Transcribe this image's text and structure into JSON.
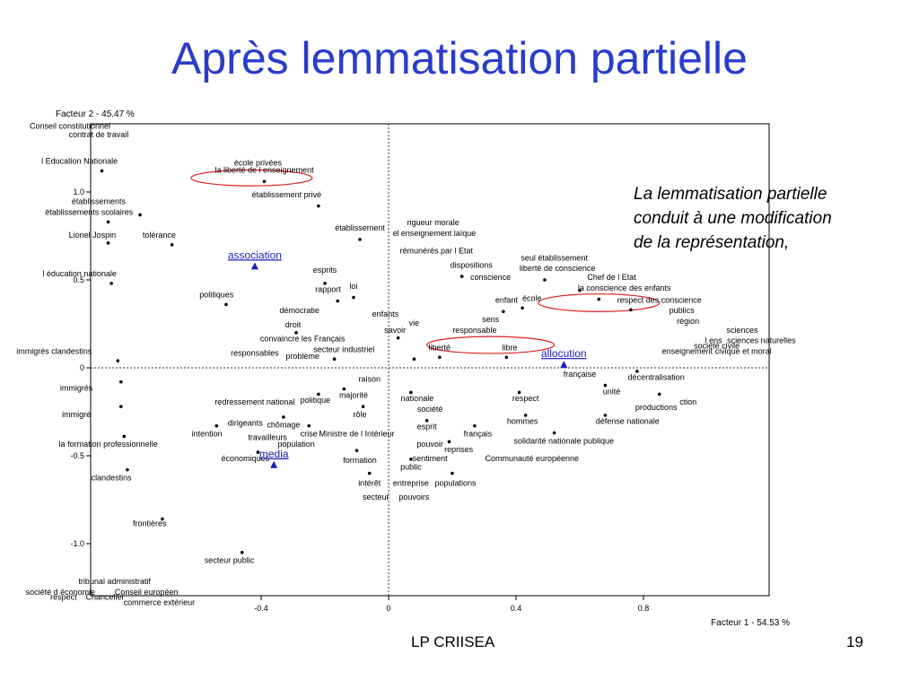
{
  "slide": {
    "title": "Après lemmatisation partielle",
    "commentary": [
      "La lemmatisation partielle",
      " conduit à une modification",
      " de la représentation,"
    ],
    "footer_source": "LP CRIISEA",
    "page_number": "19"
  },
  "chart_data": {
    "type": "scatter",
    "x_axis_label": "Facteur 1  -  54.53 %",
    "y_axis_label": "Facteur 2  -  45.47 %",
    "xlim": [
      -1.0,
      1.0
    ],
    "ylim": [
      -1.29,
      1.38
    ],
    "x_ticks": [
      {
        "value": -0.4,
        "label": "-0.4"
      },
      {
        "value": 0,
        "label": "0"
      },
      {
        "value": 0.4,
        "label": "0.4"
      },
      {
        "value": 0.8,
        "label": "0.8"
      }
    ],
    "y_ticks": [
      {
        "value": 1.0,
        "label": "1.0"
      },
      {
        "value": 0.5,
        "label": "0.5"
      },
      {
        "value": 0,
        "label": "0"
      },
      {
        "value": -0.5,
        "label": "-0.5"
      },
      {
        "value": -1.0,
        "label": "-1.0"
      }
    ],
    "colors": {
      "words": "#000000",
      "variables": "#1a1fb8",
      "highlight": "#dd2222",
      "axis": "#000000"
    },
    "variables": [
      {
        "label": "association",
        "x": -0.42,
        "y": 0.58
      },
      {
        "label": "media",
        "x": -0.36,
        "y": -0.55
      },
      {
        "label": "allocution",
        "x": 0.55,
        "y": 0.02
      }
    ],
    "words": [
      {
        "label": "Conseil constitutionnel",
        "x": -1.0,
        "y": 1.36
      },
      {
        "label": "contrat de travail",
        "x": -0.91,
        "y": 1.31
      },
      {
        "label": "l Education Nationale",
        "x": -0.97,
        "y": 1.16
      },
      {
        "label": "école privées",
        "x": -0.41,
        "y": 1.15
      },
      {
        "label": "la liberté de l enseignement",
        "x": -0.39,
        "y": 1.11
      },
      {
        "label": "établissement privé",
        "x": -0.32,
        "y": 0.97
      },
      {
        "label": "établissements",
        "x": -0.91,
        "y": 0.93
      },
      {
        "label": "établissements scolaires",
        "x": -0.94,
        "y": 0.87
      },
      {
        "label": "rigueur morale",
        "x": 0.14,
        "y": 0.81
      },
      {
        "label": "établissement",
        "x": -0.09,
        "y": 0.78
      },
      {
        "label": "e",
        "x": 0.02,
        "y": 0.75
      },
      {
        "label": "l enseignement laïque",
        "x": 0.15,
        "y": 0.75
      },
      {
        "label": "Lionel Jospin",
        "x": -0.93,
        "y": 0.74
      },
      {
        "label": "tolérance",
        "x": -0.72,
        "y": 0.74
      },
      {
        "label": "rémunérés par l Etat",
        "x": 0.15,
        "y": 0.65
      },
      {
        "label": "seul établissement",
        "x": 0.52,
        "y": 0.61
      },
      {
        "label": "dispositions",
        "x": 0.26,
        "y": 0.57
      },
      {
        "label": "liberté de conscience",
        "x": 0.53,
        "y": 0.55
      },
      {
        "label": "esprits",
        "x": -0.2,
        "y": 0.54
      },
      {
        "label": "conscience",
        "x": 0.32,
        "y": 0.5
      },
      {
        "label": "Chef de l Etat",
        "x": 0.7,
        "y": 0.5
      },
      {
        "label": "l éducation nationale",
        "x": -0.97,
        "y": 0.52
      },
      {
        "label": "loi",
        "x": -0.11,
        "y": 0.45
      },
      {
        "label": "rapport",
        "x": -0.19,
        "y": 0.43
      },
      {
        "label": "la conscience des enfants",
        "x": 0.74,
        "y": 0.44
      },
      {
        "label": "politiques",
        "x": -0.54,
        "y": 0.4
      },
      {
        "label": "enfant",
        "x": 0.37,
        "y": 0.37
      },
      {
        "label": "école",
        "x": 0.45,
        "y": 0.38
      },
      {
        "label": "respect des conscience",
        "x": 0.85,
        "y": 0.37
      },
      {
        "label": "démocratie",
        "x": -0.28,
        "y": 0.31
      },
      {
        "label": "publics",
        "x": 0.92,
        "y": 0.31
      },
      {
        "label": "enfants",
        "x": -0.01,
        "y": 0.29
      },
      {
        "label": "sens",
        "x": 0.32,
        "y": 0.26
      },
      {
        "label": "région",
        "x": 0.94,
        "y": 0.25
      },
      {
        "label": "droit",
        "x": -0.3,
        "y": 0.23
      },
      {
        "label": "vie",
        "x": 0.08,
        "y": 0.24
      },
      {
        "label": "savoir",
        "x": 0.02,
        "y": 0.2
      },
      {
        "label": "responsable",
        "x": 0.27,
        "y": 0.2
      },
      {
        "label": "sciences",
        "x": 1.11,
        "y": 0.2
      },
      {
        "label": "convaincre les Français",
        "x": -0.27,
        "y": 0.15
      },
      {
        "label": "l ens",
        "x": 1.02,
        "y": 0.14
      },
      {
        "label": "sciences naturelles",
        "x": 1.17,
        "y": 0.14
      },
      {
        "label": "secteur industriel",
        "x": -0.14,
        "y": 0.09
      },
      {
        "label": "liberté",
        "x": 0.16,
        "y": 0.1
      },
      {
        "label": "libre",
        "x": 0.38,
        "y": 0.1
      },
      {
        "label": "enseignement civique et moral",
        "x": 1.03,
        "y": 0.08
      },
      {
        "label": "immigrés clandestins",
        "x": -1.05,
        "y": 0.08
      },
      {
        "label": "responsables",
        "x": -0.42,
        "y": 0.07
      },
      {
        "label": "problème",
        "x": -0.27,
        "y": 0.05
      },
      {
        "label": "française",
        "x": 0.6,
        "y": -0.05
      },
      {
        "label": "raison",
        "x": -0.06,
        "y": -0.08
      },
      {
        "label": "décentralisation",
        "x": 0.84,
        "y": -0.07
      },
      {
        "label": "immigrés",
        "x": -0.98,
        "y": -0.13
      },
      {
        "label": "majorité",
        "x": -0.11,
        "y": -0.17
      },
      {
        "label": "unité",
        "x": 0.7,
        "y": -0.15
      },
      {
        "label": "nationale",
        "x": 0.09,
        "y": -0.19
      },
      {
        "label": "politique",
        "x": -0.23,
        "y": -0.2
      },
      {
        "label": "respect",
        "x": 0.43,
        "y": -0.19
      },
      {
        "label": "ction",
        "x": 0.94,
        "y": -0.21
      },
      {
        "label": "redressement national",
        "x": -0.42,
        "y": -0.21
      },
      {
        "label": "productions",
        "x": 0.84,
        "y": -0.24
      },
      {
        "label": "société",
        "x": 0.13,
        "y": -0.25
      },
      {
        "label": "immigré",
        "x": -0.98,
        "y": -0.28
      },
      {
        "label": "rôle",
        "x": -0.09,
        "y": -0.28
      },
      {
        "label": "défense nationale",
        "x": 0.75,
        "y": -0.32
      },
      {
        "label": "dirigeants",
        "x": -0.45,
        "y": -0.33
      },
      {
        "label": "chômage",
        "x": -0.33,
        "y": -0.34
      },
      {
        "label": "hommes",
        "x": 0.42,
        "y": -0.32
      },
      {
        "label": "esprit",
        "x": 0.12,
        "y": -0.35
      },
      {
        "label": "crise",
        "x": -0.25,
        "y": -0.39
      },
      {
        "label": "Ministre de l Intérieur",
        "x": -0.1,
        "y": -0.39
      },
      {
        "label": "français",
        "x": 0.28,
        "y": -0.39
      },
      {
        "label": "intention",
        "x": -0.57,
        "y": -0.39
      },
      {
        "label": "travailleurs",
        "x": -0.38,
        "y": -0.41
      },
      {
        "label": "solidarité nationale publique",
        "x": 0.55,
        "y": -0.43
      },
      {
        "label": "pouvoir",
        "x": 0.13,
        "y": -0.45
      },
      {
        "label": "la formation professionnelle",
        "x": -0.88,
        "y": -0.45
      },
      {
        "label": "population",
        "x": -0.29,
        "y": -0.45
      },
      {
        "label": "reprises",
        "x": 0.22,
        "y": -0.48
      },
      {
        "label": "sentiment",
        "x": 0.13,
        "y": -0.53
      },
      {
        "label": "Communauté européenne",
        "x": 0.45,
        "y": -0.53
      },
      {
        "label": "économiques",
        "x": -0.45,
        "y": -0.53
      },
      {
        "label": "formation",
        "x": -0.09,
        "y": -0.54
      },
      {
        "label": "public",
        "x": 0.07,
        "y": -0.58
      },
      {
        "label": "clandestins",
        "x": -0.87,
        "y": -0.64
      },
      {
        "label": "intérêt",
        "x": -0.06,
        "y": -0.67
      },
      {
        "label": "entreprise",
        "x": 0.07,
        "y": -0.67
      },
      {
        "label": "populations",
        "x": 0.21,
        "y": -0.67
      },
      {
        "label": "pouvoirs",
        "x": 0.08,
        "y": -0.75
      },
      {
        "label": "secteur",
        "x": -0.04,
        "y": -0.75
      },
      {
        "label": "frontières",
        "x": -0.75,
        "y": -0.9
      },
      {
        "label": "secteur public",
        "x": -0.5,
        "y": -1.11
      },
      {
        "label": "tribunal administratif",
        "x": -0.86,
        "y": -1.23
      },
      {
        "label": "société d économie",
        "x": -1.03,
        "y": -1.29
      },
      {
        "label": "Conseil européen",
        "x": -0.76,
        "y": -1.29
      },
      {
        "label": "respect",
        "x": -1.02,
        "y": -1.32
      },
      {
        "label": "Chancelier",
        "x": -0.89,
        "y": -1.32
      },
      {
        "label": "commerce extérieur",
        "x": -0.72,
        "y": -1.35
      },
      {
        "label": "société civile",
        "x": 1.03,
        "y": 0.11
      }
    ],
    "dots": [
      {
        "x": -0.9,
        "y": 1.12
      },
      {
        "x": -0.39,
        "y": 1.06
      },
      {
        "x": -0.22,
        "y": 0.92
      },
      {
        "x": -0.78,
        "y": 0.87
      },
      {
        "x": -0.88,
        "y": 0.83
      },
      {
        "x": -0.09,
        "y": 0.73
      },
      {
        "x": -0.68,
        "y": 0.7
      },
      {
        "x": -0.88,
        "y": 0.71
      },
      {
        "x": 0.23,
        "y": 0.52
      },
      {
        "x": 0.49,
        "y": 0.5
      },
      {
        "x": -0.87,
        "y": 0.48
      },
      {
        "x": -0.2,
        "y": 0.48
      },
      {
        "x": -0.11,
        "y": 0.4
      },
      {
        "x": -0.16,
        "y": 0.38
      },
      {
        "x": -0.51,
        "y": 0.36
      },
      {
        "x": 0.6,
        "y": 0.44
      },
      {
        "x": 0.66,
        "y": 0.39
      },
      {
        "x": 0.42,
        "y": 0.34
      },
      {
        "x": 0.36,
        "y": 0.32
      },
      {
        "x": 0.76,
        "y": 0.33
      },
      {
        "x": -0.29,
        "y": 0.2
      },
      {
        "x": 0.03,
        "y": 0.17
      },
      {
        "x": 0.08,
        "y": 0.05
      },
      {
        "x": -0.17,
        "y": 0.05
      },
      {
        "x": 0.16,
        "y": 0.06
      },
      {
        "x": 0.37,
        "y": 0.06
      },
      {
        "x": -0.85,
        "y": 0.04
      },
      {
        "x": 0.78,
        "y": -0.02
      },
      {
        "x": -0.84,
        "y": -0.08
      },
      {
        "x": -0.14,
        "y": -0.12
      },
      {
        "x": 0.07,
        "y": -0.14
      },
      {
        "x": -0.22,
        "y": -0.15
      },
      {
        "x": 0.41,
        "y": -0.14
      },
      {
        "x": 0.68,
        "y": -0.1
      },
      {
        "x": 0.85,
        "y": -0.15
      },
      {
        "x": -0.84,
        "y": -0.22
      },
      {
        "x": -0.08,
        "y": -0.22
      },
      {
        "x": 0.12,
        "y": -0.3
      },
      {
        "x": -0.33,
        "y": -0.28
      },
      {
        "x": 0.43,
        "y": -0.27
      },
      {
        "x": 0.68,
        "y": -0.27
      },
      {
        "x": -0.54,
        "y": -0.33
      },
      {
        "x": -0.25,
        "y": -0.33
      },
      {
        "x": 0.27,
        "y": -0.33
      },
      {
        "x": 0.52,
        "y": -0.37
      },
      {
        "x": 0.19,
        "y": -0.42
      },
      {
        "x": -0.83,
        "y": -0.39
      },
      {
        "x": -0.1,
        "y": -0.47
      },
      {
        "x": 0.07,
        "y": -0.52
      },
      {
        "x": -0.41,
        "y": -0.48
      },
      {
        "x": -0.82,
        "y": -0.58
      },
      {
        "x": -0.06,
        "y": -0.6
      },
      {
        "x": 0.2,
        "y": -0.6
      },
      {
        "x": -0.71,
        "y": -0.86
      },
      {
        "x": -0.46,
        "y": -1.05
      }
    ],
    "highlights": [
      {
        "cx": -0.43,
        "cy": 1.08,
        "rx": 0.19,
        "ry": 0.045
      },
      {
        "cx": 0.32,
        "cy": 0.13,
        "rx": 0.2,
        "ry": 0.048
      },
      {
        "cx": 0.66,
        "cy": 0.37,
        "rx": 0.19,
        "ry": 0.05
      }
    ]
  }
}
